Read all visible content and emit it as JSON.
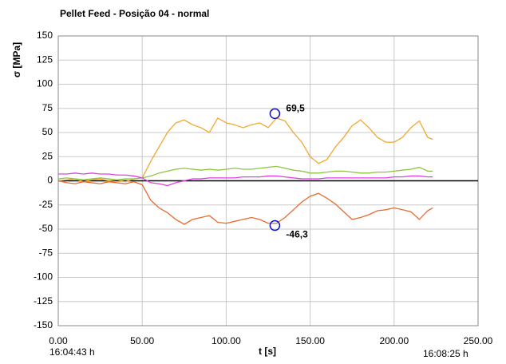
{
  "chart_data": {
    "type": "line",
    "title": "Pellet Feed - Posição 04 - normal",
    "ylabel": "σ [MPa]",
    "xlabel": "t [s]",
    "x_start_label": "16:04:43 h",
    "x_end_label": "16:08:25 h",
    "xlim": [
      0,
      250
    ],
    "xticks": [
      {
        "value": 0,
        "label": "0.00"
      },
      {
        "value": 50,
        "label": "50.00"
      },
      {
        "value": 100,
        "label": "100.00"
      },
      {
        "value": 150,
        "label": "150.00"
      },
      {
        "value": 200,
        "label": "200.00"
      },
      {
        "value": 250,
        "label": "250.00"
      }
    ],
    "ylim": [
      -150,
      150
    ],
    "yticks": [
      150,
      125,
      100,
      75,
      50,
      25,
      0,
      -25,
      -50,
      -75,
      -100,
      -125,
      -150
    ],
    "grid": true,
    "x": [
      0,
      5,
      10,
      15,
      20,
      25,
      30,
      35,
      40,
      45,
      50,
      55,
      60,
      65,
      70,
      75,
      80,
      85,
      90,
      95,
      100,
      105,
      110,
      115,
      120,
      125,
      130,
      135,
      140,
      145,
      150,
      155,
      160,
      165,
      170,
      175,
      180,
      185,
      190,
      195,
      200,
      205,
      210,
      215,
      220,
      223
    ],
    "series": [
      {
        "color": "#f0a830",
        "values": [
          0,
          1,
          2,
          -1,
          1,
          2,
          0,
          1,
          -1,
          2,
          3,
          20,
          35,
          50,
          60,
          63,
          58,
          55,
          50,
          65,
          60,
          58,
          55,
          58,
          60,
          55,
          65,
          62,
          50,
          40,
          25,
          18,
          22,
          35,
          45,
          57,
          63,
          55,
          45,
          40,
          40,
          45,
          55,
          62,
          45,
          43
        ]
      },
      {
        "color": "#ea6a2e",
        "values": [
          0,
          -2,
          -3,
          -1,
          -2,
          -3,
          -1,
          -2,
          -3,
          -1,
          -4,
          -20,
          -28,
          -33,
          -40,
          -45,
          -40,
          -38,
          -36,
          -43,
          -44,
          -42,
          -40,
          -38,
          -40,
          -44,
          -44,
          -38,
          -30,
          -22,
          -16,
          -13,
          -18,
          -24,
          -32,
          -40,
          -38,
          -35,
          -31,
          -30,
          -28,
          -30,
          -32,
          -40,
          -31,
          -28
        ]
      },
      {
        "color": "#8cc63f",
        "values": [
          2,
          3,
          2,
          1,
          2,
          3,
          2,
          1,
          2,
          2,
          3,
          5,
          8,
          10,
          12,
          13,
          12,
          11,
          12,
          11,
          12,
          13,
          12,
          12,
          13,
          14,
          15,
          13,
          11,
          10,
          8,
          8,
          9,
          10,
          10,
          9,
          8,
          8,
          9,
          9,
          10,
          11,
          12,
          14,
          10,
          10
        ]
      },
      {
        "color": "#e040e0",
        "values": [
          7,
          7,
          8,
          7,
          8,
          7,
          7,
          6,
          6,
          5,
          3,
          -2,
          -3,
          -5,
          -2,
          0,
          2,
          2,
          3,
          3,
          3,
          3,
          4,
          4,
          4,
          5,
          5,
          4,
          3,
          2,
          2,
          2,
          3,
          3,
          3,
          3,
          3,
          3,
          3,
          3,
          4,
          4,
          5,
          5,
          4,
          4
        ]
      }
    ],
    "markers": [
      {
        "x": 129,
        "value": 69.5,
        "label": "69,5"
      },
      {
        "x": 129,
        "value": -46.3,
        "label": "-46,3"
      }
    ],
    "marker_color": "#1010c0"
  }
}
